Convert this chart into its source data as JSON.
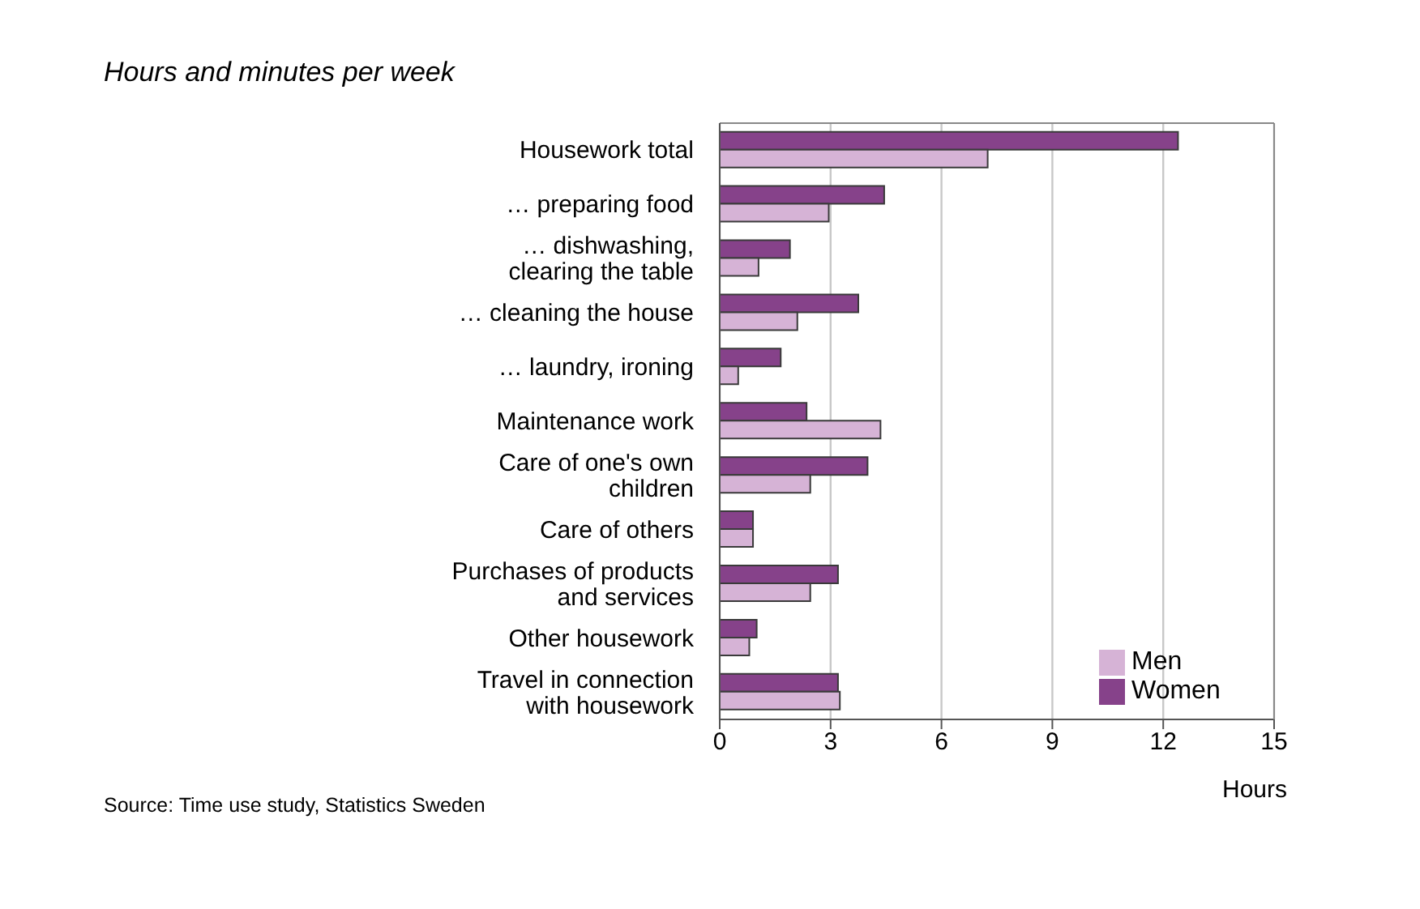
{
  "chart_data": {
    "type": "bar",
    "orientation": "horizontal",
    "title": "Hours and minutes per week",
    "xlabel": "Hours",
    "categories": [
      "Housework total",
      "… preparing food",
      "… dishwashing, clearing the table",
      "… cleaning the house",
      "… laundry, ironing",
      "Maintenance work",
      "Care of one's own children",
      "Care of others",
      "Purchases of products and services",
      "Other housework",
      "Travel in connection with housework"
    ],
    "series": [
      {
        "name": "Women",
        "color": "#86428a",
        "values": [
          12.4,
          4.45,
          1.9,
          3.75,
          1.65,
          2.35,
          4.0,
          0.9,
          3.2,
          1.0,
          3.2
        ]
      },
      {
        "name": "Men",
        "color": "#d6b3d6",
        "values": [
          7.25,
          2.95,
          1.05,
          2.1,
          0.5,
          4.35,
          2.45,
          0.9,
          2.45,
          0.8,
          3.25
        ]
      }
    ],
    "xlim": [
      0,
      15
    ],
    "xticks": [
      0,
      3,
      6,
      9,
      12,
      15
    ],
    "grid": "x",
    "legend": "bottom right",
    "annotations": [
      "Source: Time use study, Statistics Sweden"
    ]
  }
}
